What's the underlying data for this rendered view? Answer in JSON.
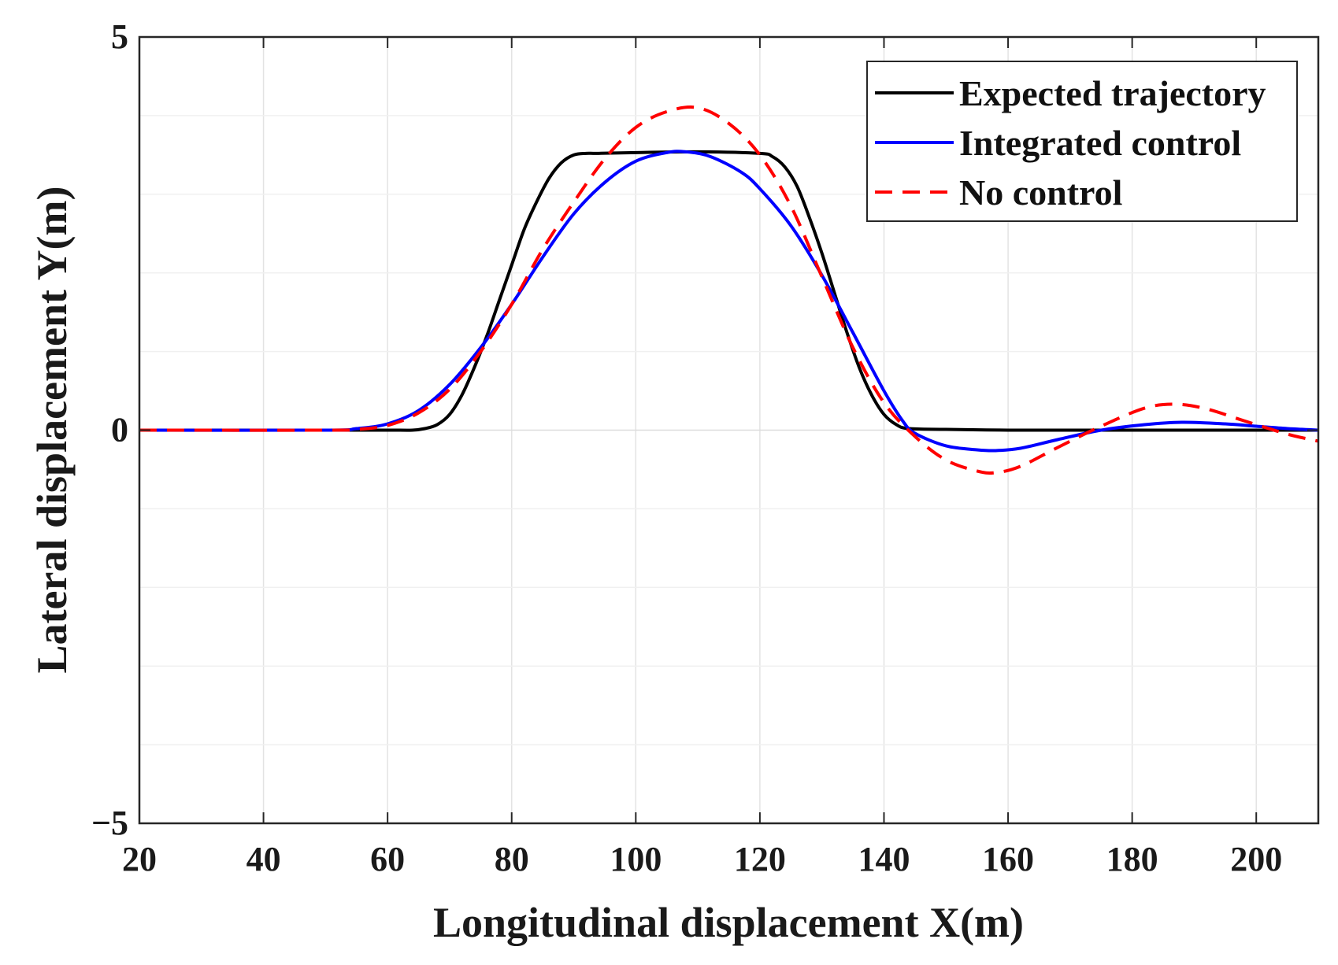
{
  "chart_data": {
    "type": "line",
    "title": "",
    "xlabel": "Longitudinal displacement X(m)",
    "ylabel": "Lateral displacement Y(m)",
    "xlim": [
      20,
      210
    ],
    "ylim": [
      -5,
      5
    ],
    "xticks": [
      20,
      40,
      60,
      80,
      100,
      120,
      140,
      160,
      180,
      200
    ],
    "xtick_labels": [
      "20",
      "40",
      "60",
      "80",
      "100",
      "120",
      "140",
      "160",
      "180",
      "200"
    ],
    "yticks": [
      -5,
      0,
      5
    ],
    "ytick_labels": [
      "−5",
      "0",
      "5"
    ],
    "grid": true,
    "legend_position": "top-right",
    "series": [
      {
        "name": "Expected trajectory",
        "color": "#000000",
        "style": "solid",
        "x": [
          20,
          40,
          60,
          64,
          66,
          68,
          70,
          72,
          74,
          76,
          78,
          80,
          82,
          84,
          86,
          88,
          90,
          92,
          94,
          100,
          110,
          120,
          122,
          124,
          126,
          128,
          130,
          132,
          134,
          136,
          138,
          140,
          142,
          144,
          150,
          160,
          170,
          180,
          190,
          200,
          210
        ],
        "y": [
          0,
          0,
          0,
          0,
          0.02,
          0.07,
          0.2,
          0.45,
          0.8,
          1.2,
          1.65,
          2.1,
          2.55,
          2.9,
          3.2,
          3.4,
          3.5,
          3.52,
          3.52,
          3.53,
          3.54,
          3.52,
          3.48,
          3.35,
          3.1,
          2.7,
          2.25,
          1.75,
          1.25,
          0.8,
          0.45,
          0.2,
          0.07,
          0.02,
          0.01,
          0.0,
          0.0,
          0.0,
          0.0,
          0.0,
          0.0
        ]
      },
      {
        "name": "Integrated control",
        "color": "#0000ff",
        "style": "solid",
        "x": [
          20,
          50,
          55,
          60,
          65,
          70,
          75,
          80,
          85,
          90,
          95,
          100,
          105,
          108,
          112,
          117,
          120,
          125,
          130,
          135,
          140,
          143,
          145,
          150,
          155,
          158,
          162,
          168,
          175,
          182,
          188,
          195,
          200,
          205,
          210
        ],
        "y": [
          0,
          0,
          0.02,
          0.08,
          0.25,
          0.58,
          1.05,
          1.6,
          2.2,
          2.75,
          3.15,
          3.42,
          3.53,
          3.54,
          3.48,
          3.28,
          3.07,
          2.6,
          1.97,
          1.24,
          0.5,
          0.12,
          -0.04,
          -0.2,
          -0.25,
          -0.26,
          -0.23,
          -0.12,
          0.0,
          0.07,
          0.1,
          0.08,
          0.05,
          0.02,
          0.0
        ]
      },
      {
        "name": "No control",
        "color": "#ff0000",
        "style": "dashed",
        "x": [
          20,
          50,
          55,
          60,
          65,
          70,
          75,
          80,
          85,
          90,
          95,
          100,
          105,
          110,
          115,
          120,
          125,
          130,
          135,
          140,
          145,
          150,
          155,
          158,
          162,
          168,
          175,
          182,
          187,
          192,
          198,
          205,
          210
        ],
        "y": [
          0,
          0,
          0.01,
          0.06,
          0.22,
          0.52,
          1.0,
          1.6,
          2.3,
          2.9,
          3.45,
          3.85,
          4.05,
          4.1,
          3.9,
          3.5,
          2.85,
          1.95,
          1.05,
          0.35,
          -0.08,
          -0.38,
          -0.52,
          -0.54,
          -0.46,
          -0.22,
          0.05,
          0.28,
          0.33,
          0.27,
          0.12,
          -0.05,
          -0.14
        ]
      }
    ]
  }
}
